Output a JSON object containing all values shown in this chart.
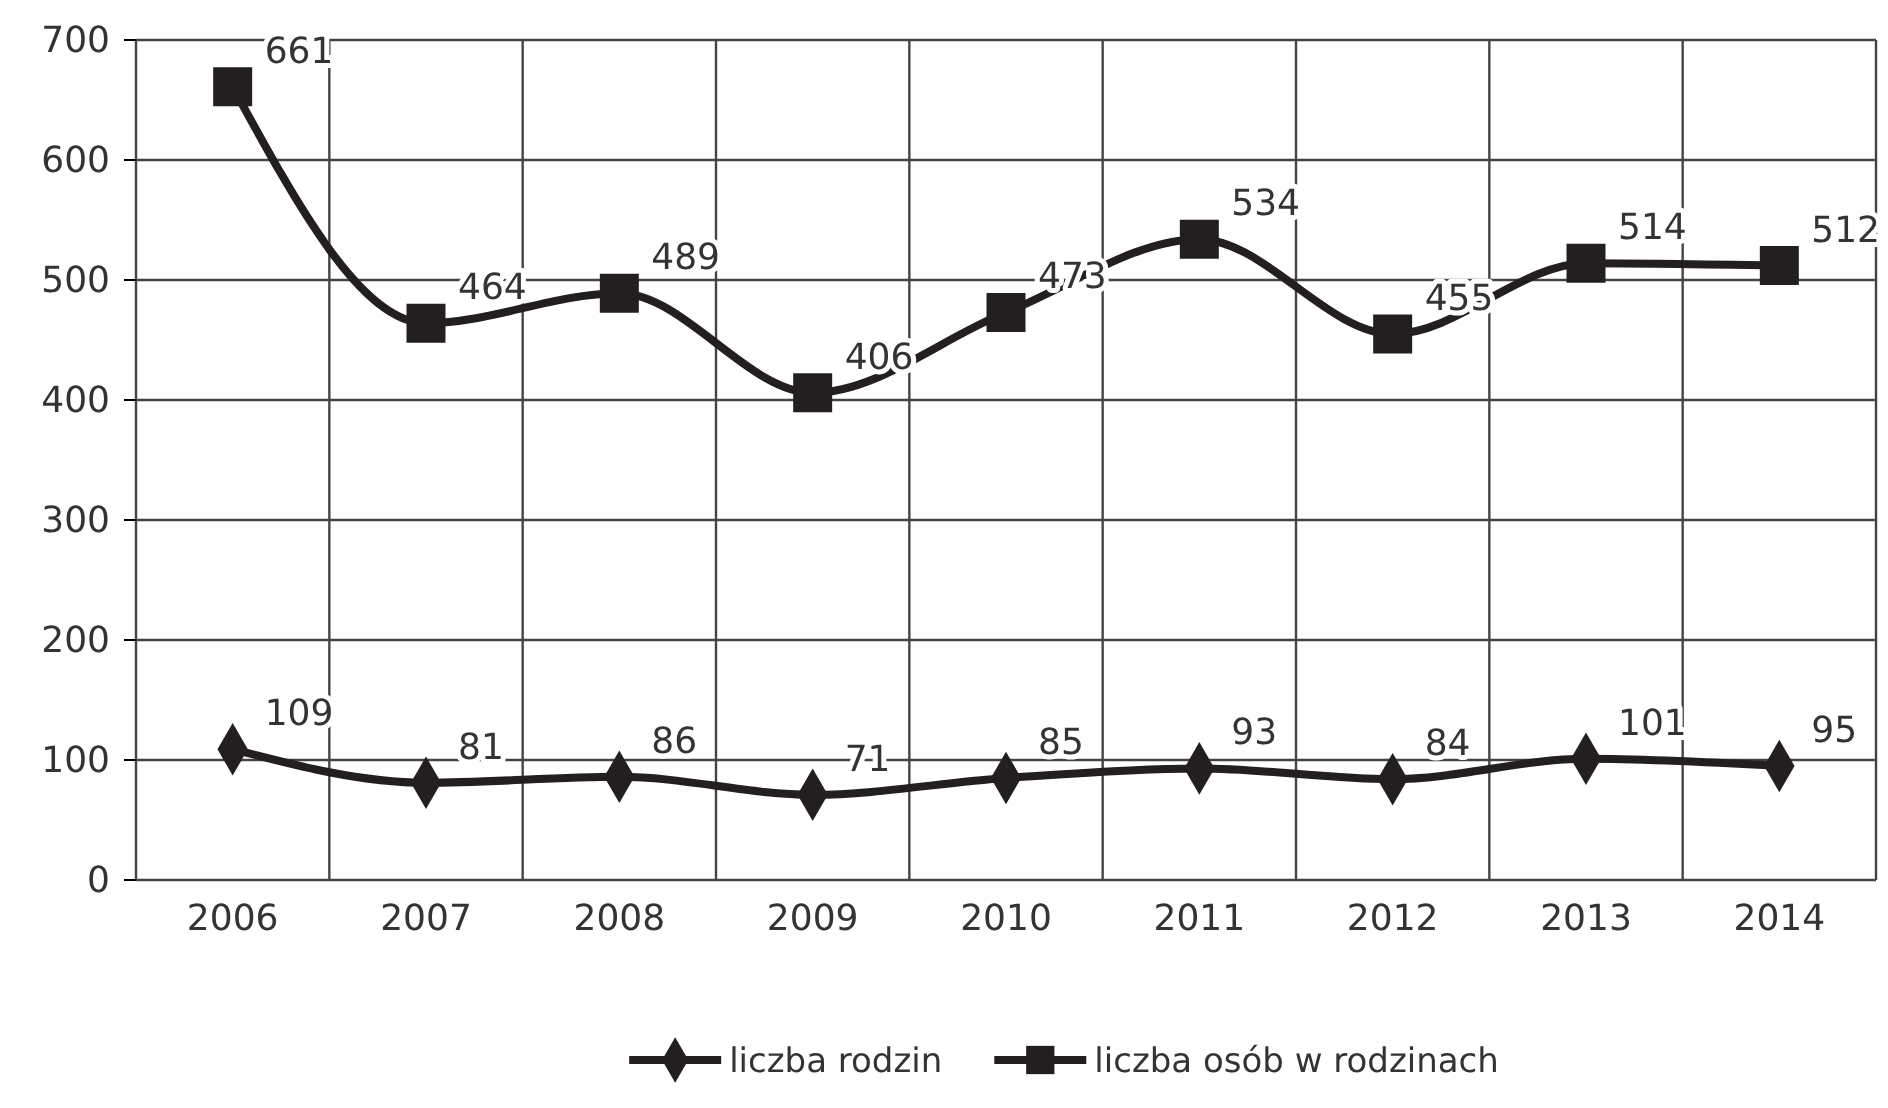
{
  "chart_data": {
    "type": "line",
    "categories": [
      "2006",
      "2007",
      "2008",
      "2009",
      "2010",
      "2011",
      "2012",
      "2013",
      "2014"
    ],
    "series": [
      {
        "name": "liczba rodzin",
        "color": "#231f20",
        "values": [
          109,
          81,
          86,
          71,
          85,
          93,
          84,
          101,
          95
        ],
        "marker": "diamond"
      },
      {
        "name": "liczba osób w rodzinach",
        "color": "#231f20",
        "values": [
          661,
          464,
          489,
          406,
          473,
          534,
          455,
          514,
          512
        ],
        "marker": "square"
      }
    ],
    "ylim": [
      0,
      700
    ],
    "yticks": [
      0,
      100,
      200,
      300,
      400,
      500,
      600,
      700
    ],
    "grid": true,
    "legend": "bottom",
    "data_labels": true,
    "line_style": "solid"
  }
}
